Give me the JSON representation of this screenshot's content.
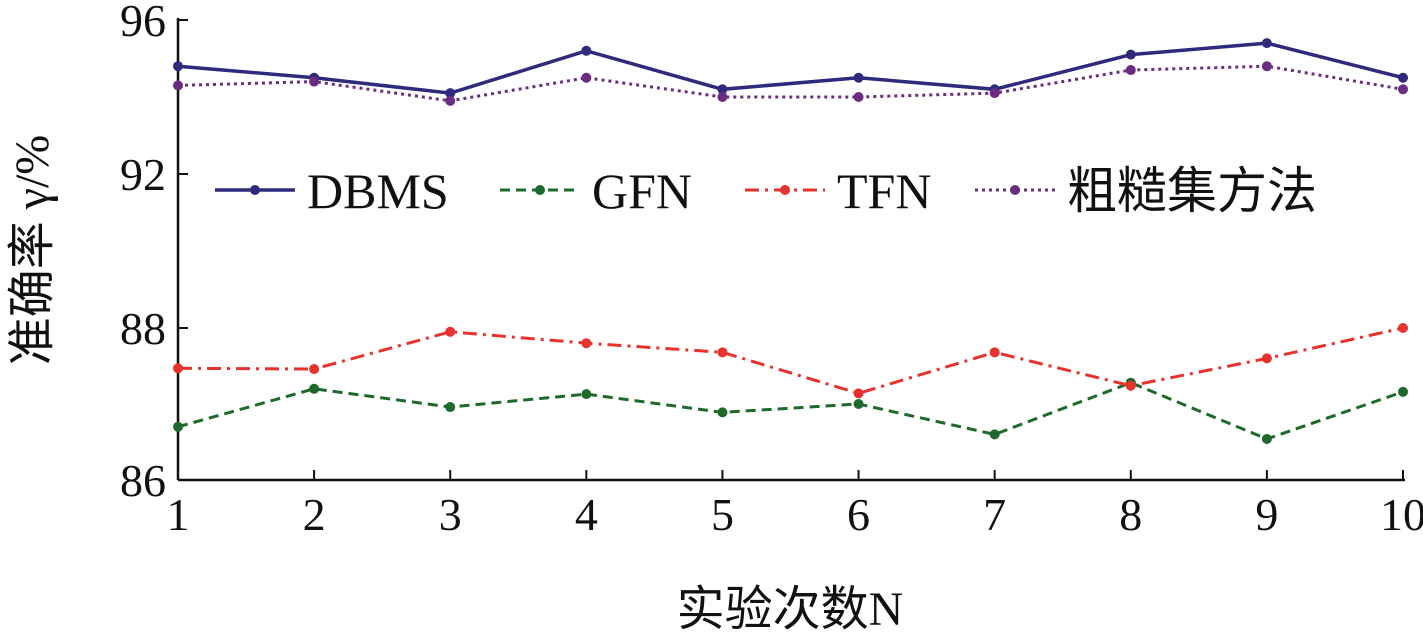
{
  "chart_data": {
    "type": "line",
    "title": "",
    "xlabel": "实验次数N",
    "ylabel": "准确率 γ/%",
    "x": [
      1,
      2,
      3,
      4,
      5,
      6,
      7,
      8,
      9,
      10
    ],
    "x_ticks": [
      "1",
      "2",
      "3",
      "4",
      "5",
      "6",
      "7",
      "8",
      "9",
      "10"
    ],
    "y_ticks": [
      "86",
      "88",
      "92",
      "96"
    ],
    "y_tick_values": [
      86,
      88,
      92,
      96
    ],
    "ylim": [
      86,
      96
    ],
    "axis_note": "broken y-axis: 86–88 segment drawn at double scale",
    "legend_position": "center",
    "series": [
      {
        "name": "DBMS",
        "color": "#2f2a7c",
        "style": "solid",
        "values": [
          94.8,
          94.5,
          94.1,
          95.2,
          94.2,
          94.5,
          94.2,
          95.1,
          95.4,
          94.5
        ]
      },
      {
        "name": "GFN",
        "color": "#1e6a2c",
        "style": "dashed",
        "values": [
          86.7,
          87.2,
          86.96,
          87.13,
          86.89,
          87.0,
          86.6,
          87.28,
          86.54,
          87.16
        ]
      },
      {
        "name": "TFN",
        "color": "#e8322f",
        "style": "dashdot",
        "values": [
          87.47,
          87.46,
          87.95,
          87.8,
          87.68,
          87.14,
          87.68,
          87.24,
          87.6,
          88.0
        ]
      },
      {
        "name": "粗糙集方法",
        "color": "#6a2d80",
        "style": "dotted",
        "values": [
          94.3,
          94.4,
          93.9,
          94.5,
          94.0,
          94.0,
          94.1,
          94.7,
          94.8,
          94.2
        ]
      }
    ]
  }
}
